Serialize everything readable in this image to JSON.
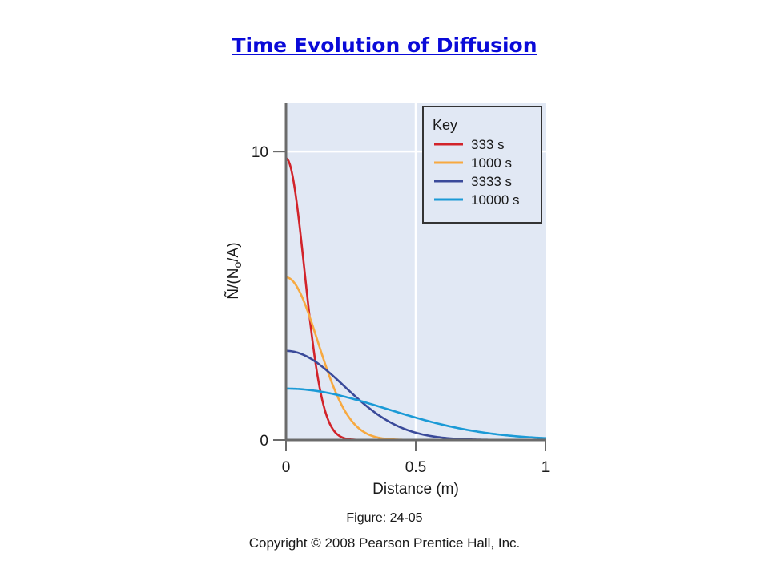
{
  "slide": {
    "title": "Time Evolution of Diffusion",
    "figure_label": "Figure: 24-05",
    "copyright": "Copyright © 2008 Pearson Prentice Hall, Inc."
  },
  "chart_data": {
    "type": "line",
    "xlabel": "Distance (m)",
    "ylabel_prefix": "Ñ/(N",
    "ylabel_sub": "o",
    "ylabel_suffix": "/A)",
    "xlim": [
      0,
      1.0
    ],
    "ylim": [
      0,
      11.7
    ],
    "x_ticks": [
      {
        "value": 0,
        "label": "0"
      },
      {
        "value": 0.5,
        "label": "0.5"
      },
      {
        "value": 1.0,
        "label": "1"
      }
    ],
    "y_ticks": [
      {
        "value": 0,
        "label": "0"
      },
      {
        "value": 10,
        "label": "10"
      }
    ],
    "grid": "major lines at x=0.5 and y=10",
    "background_color": "#e1e8f4",
    "legend": {
      "title": "Key",
      "position": "top-right"
    },
    "series": [
      {
        "name": "333 s",
        "color": "#d2232a",
        "peak": 9.77,
        "width": 0.1
      },
      {
        "name": "1000 s",
        "color": "#f7a940",
        "peak": 5.64,
        "width": 0.173
      },
      {
        "name": "3333 s",
        "color": "#3a4a9a",
        "peak": 3.09,
        "width": 0.316
      },
      {
        "name": "10000 s",
        "color": "#1b9ad6",
        "peak": 1.78,
        "width": 0.548
      }
    ]
  }
}
